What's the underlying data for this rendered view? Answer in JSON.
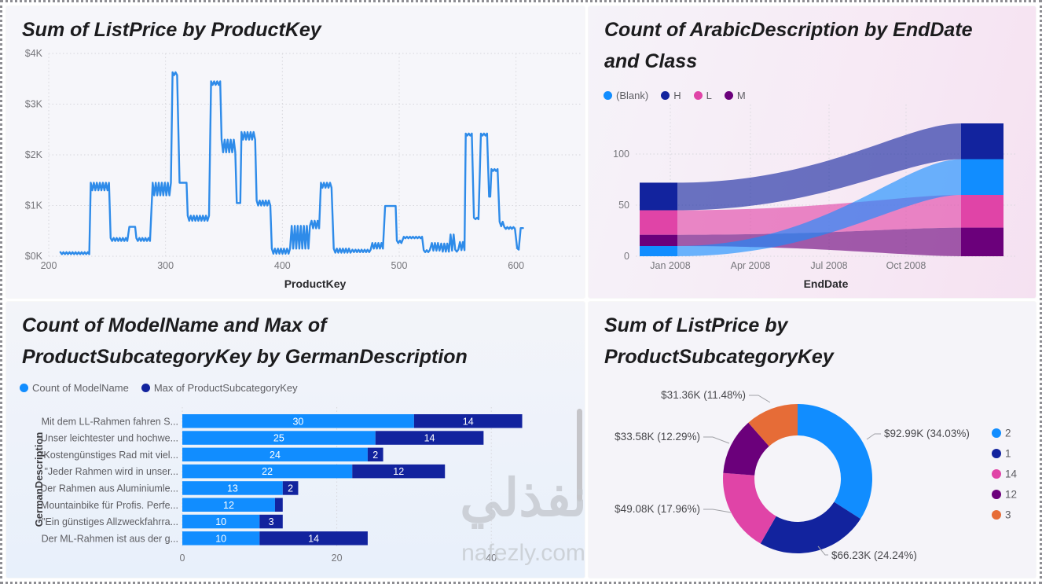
{
  "page": {
    "watermark_arabic": "نفذلي",
    "watermark_latin": "nafezly.com"
  },
  "palette": {
    "blue": "#118DFF",
    "navy": "#12239E",
    "pink": "#E044A7",
    "purple": "#6B007B",
    "orange": "#E66C37",
    "line_blue": "#2E8BE9"
  },
  "chart_data": [
    {
      "type": "line",
      "title": "Sum of ListPrice by ProductKey",
      "title_lines": [
        "Sum of ListPrice by ProductKey"
      ],
      "xlabel": "ProductKey",
      "ylabel": "",
      "xlim": [
        195,
        612
      ],
      "ylim": [
        0,
        4000
      ],
      "xticks": [
        "200",
        "300",
        "400",
        "500",
        "600"
      ],
      "xtick_values": [
        200,
        300,
        400,
        500,
        600
      ],
      "ytick_labels": [
        "$0K",
        "$1K",
        "$2K",
        "$3K",
        "$4K"
      ],
      "ytick_values": [
        0,
        1000,
        2000,
        3000,
        4000
      ],
      "color": "#2E8BE9",
      "grid": true,
      "segments_note": "each segment = [productkey_start, productkey_end, low_value, high_value]; line oscillates between low/high across the segment",
      "segments": [
        [
          210,
          235,
          40,
          80
        ],
        [
          236,
          252,
          1300,
          1450
        ],
        [
          253,
          268,
          300,
          360
        ],
        [
          269,
          274,
          575,
          585
        ],
        [
          275,
          288,
          300,
          360
        ],
        [
          289,
          305,
          1200,
          1450
        ],
        [
          306,
          311,
          3570,
          3630
        ],
        [
          312,
          318,
          1440,
          1460
        ],
        [
          319,
          338,
          700,
          800
        ],
        [
          339,
          347,
          3380,
          3450
        ],
        [
          348,
          360,
          2050,
          2300
        ],
        [
          361,
          364,
          1040,
          1060
        ],
        [
          365,
          377,
          2300,
          2450
        ],
        [
          378,
          390,
          1000,
          1100
        ],
        [
          391,
          407,
          50,
          150
        ],
        [
          408,
          424,
          150,
          600
        ],
        [
          425,
          432,
          550,
          700
        ],
        [
          433,
          443,
          1350,
          1450
        ],
        [
          444,
          459,
          70,
          150
        ],
        [
          460,
          476,
          80,
          130
        ],
        [
          477,
          487,
          150,
          260
        ],
        [
          488,
          497,
          980,
          1000
        ],
        [
          498,
          503,
          260,
          310
        ],
        [
          504,
          520,
          355,
          385
        ],
        [
          521,
          527,
          80,
          120
        ],
        [
          528,
          535,
          110,
          260
        ],
        [
          536,
          543,
          90,
          250
        ],
        [
          544,
          547,
          110,
          430
        ],
        [
          548,
          551,
          90,
          130
        ],
        [
          552,
          556,
          120,
          280
        ],
        [
          557,
          563,
          2380,
          2420
        ],
        [
          564,
          569,
          730,
          760
        ],
        [
          570,
          576,
          2380,
          2420
        ],
        [
          577,
          578,
          1150,
          1200
        ],
        [
          579,
          585,
          1680,
          1720
        ],
        [
          586,
          589,
          590,
          680
        ],
        [
          590,
          600,
          540,
          575
        ],
        [
          601,
          603,
          130,
          160
        ],
        [
          604,
          606,
          545,
          565
        ]
      ]
    },
    {
      "type": "ribbon",
      "title": "Count of ArabicDescription by EndDate and Class",
      "title_lines": [
        "Count of ArabicDescription by EndDate",
        "and Class"
      ],
      "xlabel": "EndDate",
      "xticks": [
        "Jan 2008",
        "Apr 2008",
        "Jul 2008",
        "Oct 2008"
      ],
      "yticks": [
        "0",
        "50",
        "100"
      ],
      "ytick_values": [
        0,
        50,
        100
      ],
      "ylim": [
        0,
        135
      ],
      "series_note": "left/right = [stack_bottom, stack_top] counts at Jan 2008 and Dec 2008 columns",
      "series": [
        {
          "name": "(Blank)",
          "color": "#118DFF",
          "left": [
            0,
            10
          ],
          "right": [
            60,
            95
          ]
        },
        {
          "name": "H",
          "color": "#12239E",
          "left": [
            45,
            72
          ],
          "right": [
            95,
            130
          ]
        },
        {
          "name": "L",
          "color": "#E044A7",
          "left": [
            21,
            45
          ],
          "right": [
            28,
            60
          ]
        },
        {
          "name": "M",
          "color": "#6B007B",
          "left": [
            10,
            21
          ],
          "right": [
            0,
            28
          ]
        }
      ]
    },
    {
      "type": "bar",
      "title": "Count of ModelName and Max of ProductSubcategoryKey by GermanDescription",
      "title_lines": [
        "Count of ModelName and Max of",
        "ProductSubcategoryKey by GermanDescription"
      ],
      "ylabel": "GermanDescription",
      "xticks": [
        "0",
        "20",
        "40"
      ],
      "xtick_values": [
        0,
        20,
        40
      ],
      "categories": [
        "Mit dem LL-Rahmen fahren S...",
        "Unser leichtester und hochwe...",
        "\"Kostengünstiges Rad mit viel...",
        "\"Jeder Rahmen wird in unser...",
        "Der Rahmen aus Aluminiumle...",
        "Mountainbike für Profis. Perfe...",
        "\"Ein günstiges Allzweckfahrra...",
        "Der ML-Rahmen ist aus der g..."
      ],
      "series": [
        {
          "name": "Count of ModelName",
          "color": "#118DFF",
          "values": [
            30,
            25,
            24,
            22,
            13,
            12,
            10,
            10
          ],
          "labels": [
            "30",
            "25",
            "24",
            "22",
            "13",
            "12",
            "10",
            "10"
          ]
        },
        {
          "name": "Max of ProductSubcategoryKey",
          "color": "#12239E",
          "values": [
            14,
            14,
            2,
            12,
            2,
            1,
            3,
            14
          ],
          "labels": [
            "14",
            "14",
            "2",
            "12",
            "2",
            "",
            "3",
            "14"
          ]
        }
      ]
    },
    {
      "type": "donut",
      "title": "Sum of ListPrice by ProductSubcategoryKey",
      "title_lines": [
        "Sum of ListPrice by",
        "ProductSubcategoryKey"
      ],
      "slices": [
        {
          "key": "2",
          "color": "#118DFF",
          "pct": 34.03,
          "label": "$92.99K (34.03%)"
        },
        {
          "key": "1",
          "color": "#12239E",
          "pct": 24.24,
          "label": "$66.23K (24.24%)"
        },
        {
          "key": "14",
          "color": "#E044A7",
          "pct": 17.96,
          "label": "$49.08K (17.96%)"
        },
        {
          "key": "12",
          "color": "#6B007B",
          "pct": 12.29,
          "label": "$33.58K (12.29%)"
        },
        {
          "key": "3",
          "color": "#E66C37",
          "pct": 11.48,
          "label": "$31.36K (11.48%)"
        }
      ]
    }
  ]
}
